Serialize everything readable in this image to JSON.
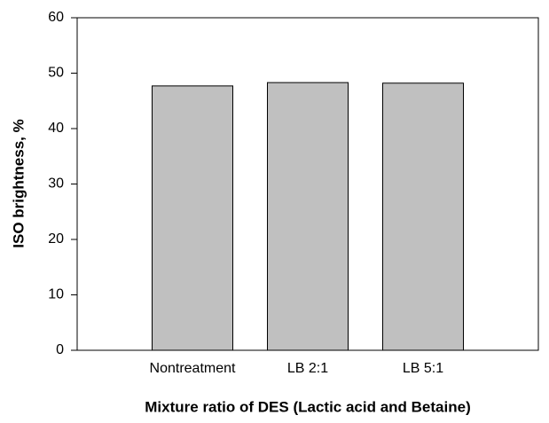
{
  "chart_data": {
    "type": "bar",
    "xlabel": "Mixture ratio of DES (Lactic acid and Betaine)",
    "ylabel": "ISO brightness, %",
    "categories": [
      "Nontreatment",
      "LB 2:1",
      "LB 5:1"
    ],
    "values": [
      47.7,
      48.3,
      48.2
    ],
    "color": "#c0c0c0",
    "ylim": [
      0,
      60
    ],
    "yticks": [
      0,
      10,
      20,
      30,
      40,
      50,
      60
    ],
    "grid": false
  }
}
